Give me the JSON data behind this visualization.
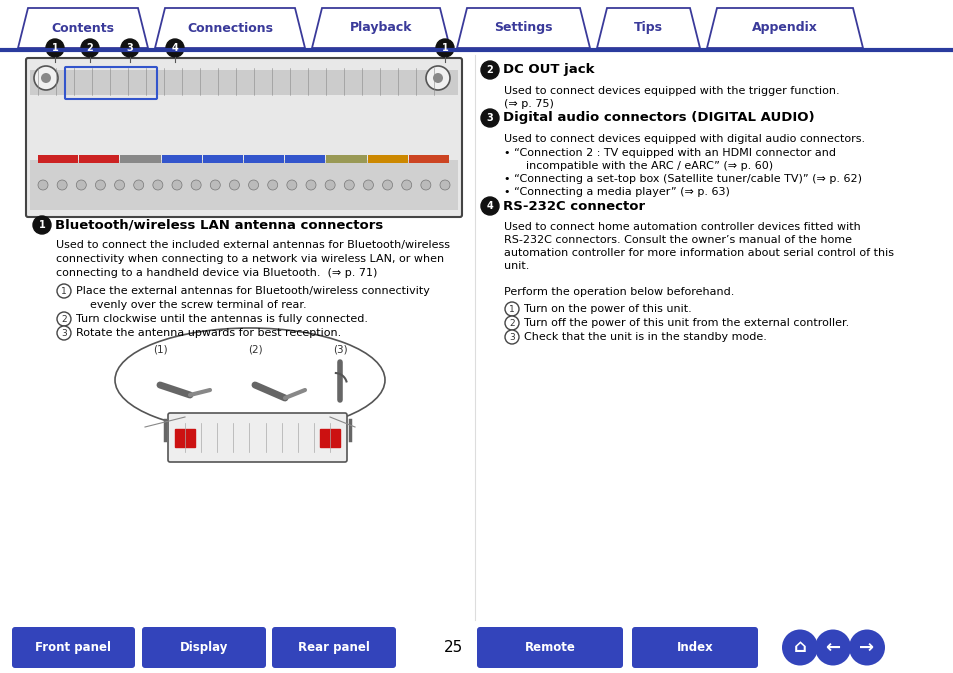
{
  "bg_color": "#ffffff",
  "tab_labels": [
    "Contents",
    "Connections",
    "Playback",
    "Settings",
    "Tips",
    "Appendix"
  ],
  "tab_color": "#3a3a9a",
  "header_line_color": "#2a3b9e",
  "nav_buttons": [
    "Front panel",
    "Display",
    "Rear panel",
    "Remote",
    "Index"
  ],
  "nav_button_color": "#3344bb",
  "page_number": "25",
  "title1": "Bluetooth/wireless LAN antenna connectors",
  "body1_lines": [
    "Used to connect the included external antennas for Bluetooth/wireless",
    "connectivity when connecting to a network via wireless LAN, or when",
    "connecting to a handheld device via Bluetooth.  (⇒ p. 71)"
  ],
  "steps1": [
    "Place the external antennas for Bluetooth/wireless connectivity",
    "    evenly over the screw terminal of rear.",
    "Turn clockwise until the antennas is fully connected.",
    "Rotate the antenna upwards for best reception."
  ],
  "steps1_indices": [
    0,
    2,
    3
  ],
  "title2": "DC OUT jack",
  "body2_lines": [
    "Used to connect devices equipped with the trigger function.",
    "(⇒ p. 75)"
  ],
  "title3": "Digital audio connectors (DIGITAL AUDIO)",
  "body3_line": "Used to connect devices equipped with digital audio connectors.",
  "bullets3": [
    "“Connection 2 : TV equipped with an HDMI connector and",
    "    incompatible with the ARC / eARC” (⇒ p. 60)",
    "“Connecting a set-top box (Satellite tuner/cable TV)” (⇒ p. 62)",
    "“Connecting a media player” (⇒ p. 63)"
  ],
  "bullets3_starts": [
    0,
    2,
    3
  ],
  "title4": "RS-232C connector",
  "body4_lines": [
    "Used to connect home automation controller devices fitted with",
    "RS-232C connectors. Consult the owner’s manual of the home",
    "automation controller for more information about serial control of this",
    "unit.",
    "",
    "Perform the operation below beforehand."
  ],
  "steps4": [
    "Turn on the power of this unit.",
    "Turn off the power of this unit from the external controller.",
    "Check that the unit is in the standby mode."
  ]
}
